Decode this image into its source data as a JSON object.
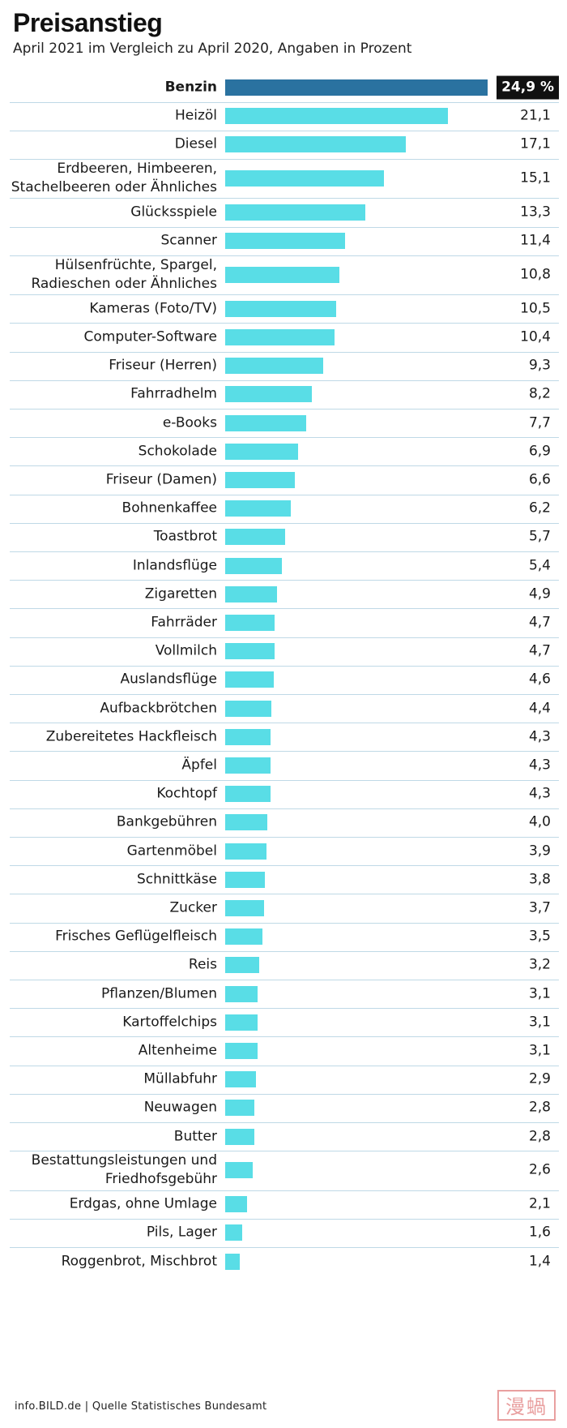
{
  "header": {
    "title": "Preisanstieg",
    "subtitle": "April 2021 im Vergleich zu April 2020, Angaben in Prozent"
  },
  "chart_data": {
    "type": "bar",
    "orientation": "horizontal",
    "highlight_index": 0,
    "unit": "%",
    "colors": {
      "highlight": "#2a72a0",
      "default": "#59dde6"
    },
    "categories": [
      "Benzin",
      "Heizöl",
      "Diesel",
      "Erdbeeren, Himbeeren,\nStachelbeeren oder Ähnliches",
      "Glücksspiele",
      "Scanner",
      "Hülsenfrüchte, Spargel,\nRadieschen oder Ähnliches",
      "Kameras (Foto/TV)",
      "Computer-Software",
      "Friseur (Herren)",
      "Fahrradhelm",
      "e-Books",
      "Schokolade",
      "Friseur (Damen)",
      "Bohnenkaffee",
      "Toastbrot",
      "Inlandsflüge",
      "Zigaretten",
      "Fahrräder",
      "Vollmilch",
      "Auslandsflüge",
      "Aufbackbrötchen",
      "Zubereitetes Hackfleisch",
      "Äpfel",
      "Kochtopf",
      "Bankgebühren",
      "Gartenmöbel",
      "Schnittkäse",
      "Zucker",
      "Frisches Geflügelfleisch",
      "Reis",
      "Pflanzen/Blumen",
      "Kartoffelchips",
      "Altenheime",
      "Müllabfuhr",
      "Neuwagen",
      "Butter",
      "Bestattungsleistungen und\nFriedhofsgebühr",
      "Erdgas, ohne Umlage",
      "Pils, Lager",
      "Roggenbrot, Mischbrot"
    ],
    "values": [
      24.9,
      21.1,
      17.1,
      15.1,
      13.3,
      11.4,
      10.8,
      10.5,
      10.4,
      9.3,
      8.2,
      7.7,
      6.9,
      6.6,
      6.2,
      5.7,
      5.4,
      4.9,
      4.7,
      4.7,
      4.6,
      4.4,
      4.3,
      4.3,
      4.3,
      4.0,
      3.9,
      3.8,
      3.7,
      3.5,
      3.2,
      3.1,
      3.1,
      3.1,
      2.9,
      2.8,
      2.8,
      2.6,
      2.1,
      1.6,
      1.4
    ],
    "value_labels": [
      "24,9 %",
      "21,1",
      "17,1",
      "15,1",
      "13,3",
      "11,4",
      "10,8",
      "10,5",
      "10,4",
      "9,3",
      "8,2",
      "7,7",
      "6,9",
      "6,6",
      "6,2",
      "5,7",
      "5,4",
      "4,9",
      "4,7",
      "4,7",
      "4,6",
      "4,4",
      "4,3",
      "4,3",
      "4,3",
      "4,0",
      "3,9",
      "3,8",
      "3,7",
      "3,5",
      "3,2",
      "3,1",
      "3,1",
      "3,1",
      "2,9",
      "2,8",
      "2,8",
      "2,6",
      "2,1",
      "1,6",
      "1,4"
    ],
    "xlim": [
      0,
      24.9
    ]
  },
  "footer": {
    "source": "info.BILD.de | Quelle Statistisches Bundesamt",
    "watermark": "漫蝸"
  }
}
